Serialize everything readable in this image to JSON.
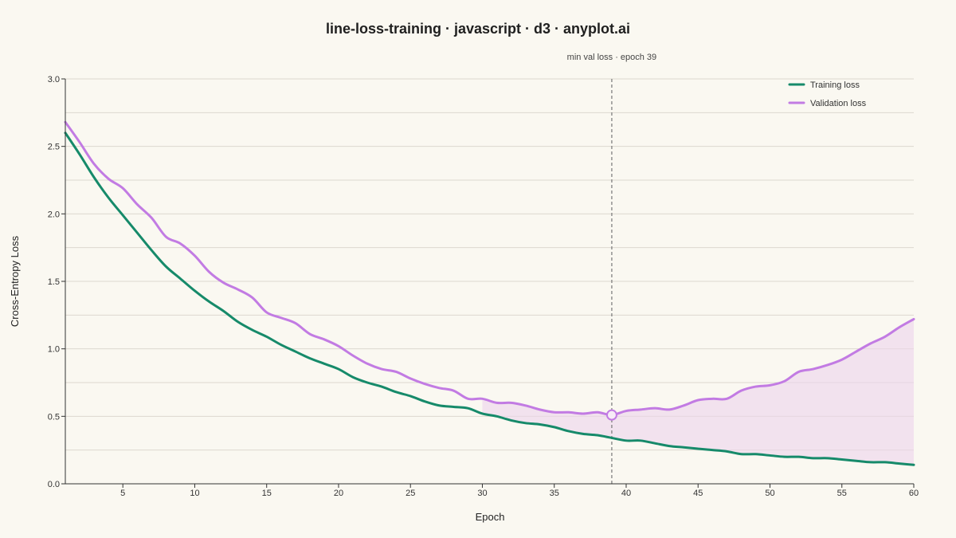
{
  "chart_data": {
    "type": "line",
    "title": "line-loss-training · javascript · d3 · anyplot.ai",
    "xlabel": "Epoch",
    "ylabel": "Cross-Entropy Loss",
    "xlim": [
      1,
      60
    ],
    "ylim": [
      0,
      3
    ],
    "x_ticks": [
      5,
      10,
      15,
      20,
      25,
      30,
      35,
      40,
      45,
      50,
      55,
      60
    ],
    "y_ticks": [
      0.0,
      0.5,
      1.0,
      1.5,
      2.0,
      2.5,
      3.0
    ],
    "y_tick_labels": [
      "0.0",
      "0.5",
      "1.0",
      "1.5",
      "2.0",
      "2.5",
      "3.0"
    ],
    "grid": true,
    "legend_position": "top-right",
    "x": [
      1,
      2,
      3,
      4,
      5,
      6,
      7,
      8,
      9,
      10,
      11,
      12,
      13,
      14,
      15,
      16,
      17,
      18,
      19,
      20,
      21,
      22,
      23,
      24,
      25,
      26,
      27,
      28,
      29,
      30,
      31,
      32,
      33,
      34,
      35,
      36,
      37,
      38,
      39,
      40,
      41,
      42,
      43,
      44,
      45,
      46,
      47,
      48,
      49,
      50,
      51,
      52,
      53,
      54,
      55,
      56,
      57,
      58,
      59,
      60
    ],
    "series": [
      {
        "name": "Training loss",
        "color": "#168a6a",
        "values": [
          2.6,
          2.44,
          2.27,
          2.12,
          1.99,
          1.86,
          1.73,
          1.61,
          1.52,
          1.43,
          1.35,
          1.28,
          1.2,
          1.14,
          1.09,
          1.03,
          0.98,
          0.93,
          0.89,
          0.85,
          0.79,
          0.75,
          0.72,
          0.68,
          0.65,
          0.61,
          0.58,
          0.57,
          0.56,
          0.52,
          0.5,
          0.47,
          0.45,
          0.44,
          0.42,
          0.39,
          0.37,
          0.36,
          0.34,
          0.32,
          0.32,
          0.3,
          0.28,
          0.27,
          0.26,
          0.25,
          0.24,
          0.22,
          0.22,
          0.21,
          0.2,
          0.2,
          0.19,
          0.19,
          0.18,
          0.17,
          0.16,
          0.16,
          0.15,
          0.14
        ]
      },
      {
        "name": "Validation loss",
        "color": "#c27be3",
        "values": [
          2.68,
          2.53,
          2.37,
          2.26,
          2.19,
          2.07,
          1.97,
          1.83,
          1.78,
          1.69,
          1.57,
          1.49,
          1.44,
          1.38,
          1.27,
          1.23,
          1.19,
          1.11,
          1.07,
          1.02,
          0.95,
          0.89,
          0.85,
          0.83,
          0.78,
          0.74,
          0.71,
          0.69,
          0.63,
          0.63,
          0.6,
          0.6,
          0.58,
          0.55,
          0.53,
          0.53,
          0.52,
          0.53,
          0.51,
          0.54,
          0.55,
          0.56,
          0.55,
          0.58,
          0.62,
          0.63,
          0.63,
          0.69,
          0.72,
          0.73,
          0.76,
          0.83,
          0.85,
          0.88,
          0.92,
          0.98,
          1.04,
          1.09,
          1.16,
          1.22
        ]
      }
    ],
    "shading": {
      "from_epoch": 30,
      "to_epoch": 60,
      "between": [
        "Training loss",
        "Validation loss"
      ],
      "color": "#ecd4ec"
    },
    "annotation": {
      "epoch": 39,
      "value": 0.51,
      "label": "min val loss · epoch 39",
      "line_color": "#777777"
    }
  }
}
